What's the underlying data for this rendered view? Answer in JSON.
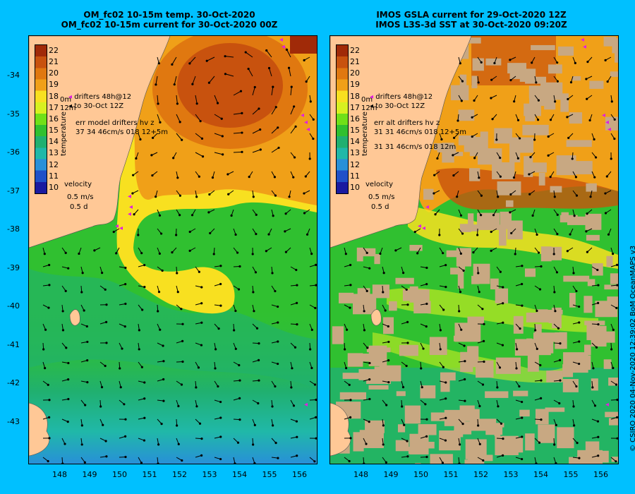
{
  "left_panel": {
    "title_line1": "OM_fc02 10-15m temp. 30-Oct-2020",
    "title_line2": "OM_fc02 10-15m current for 30-Oct-2020 00Z",
    "legend_drifters": "drifters 48h@12",
    "legend_to": "to 30-Oct 12Z",
    "legend_err": "err model drifters hv z",
    "legend_err_values": "37 34 46cm/s 018 12+5m",
    "depth_top": "0m",
    "depth_bottom": "12m"
  },
  "right_panel": {
    "title_line1": "IMOS GSLA current for 29-Oct-2020 12Z",
    "title_line2": "IMOS L3S-3d SST at 30-Oct-2020 09:20Z",
    "legend_drifters": "drifters 48h@12",
    "legend_to": "to 30-Oct 12Z",
    "legend_err": "err alt drifters hv z",
    "legend_err_values": "31 31 46cm/s 018 12+5m",
    "legend_err_values2": "31 31 46cm/s 018 12m",
    "depth_top": "0m",
    "depth_bottom": "12m"
  },
  "colorbar": {
    "title": "temperature",
    "ticks": [
      "22",
      "21",
      "20",
      "19",
      "18",
      "17",
      "16",
      "15",
      "14",
      "13",
      "12",
      "11",
      "10"
    ],
    "colors": [
      "#a02a08",
      "#c8520e",
      "#e07810",
      "#f0a018",
      "#f8e020",
      "#d8f020",
      "#70e018",
      "#30c030",
      "#20b070",
      "#20b8a8",
      "#2890d8",
      "#2050c8",
      "#1a1aa0"
    ]
  },
  "velocity_scale": {
    "label": "velocity",
    "speed": "0.5 m/s",
    "time": "0.5 d"
  },
  "lat_labels": [
    "-34",
    "-35",
    "-36",
    "-37",
    "-38",
    "-39",
    "-40",
    "-41",
    "-42",
    "-43"
  ],
  "lon_labels": [
    "148",
    "149",
    "150",
    "151",
    "152",
    "153",
    "154",
    "155",
    "156"
  ],
  "credit": "© CSIRO 2020   04-Nov-2020 12:39:02 BoM OceanMAPS v3",
  "colors": {
    "background": "#00c0ff",
    "land": "#ffc896",
    "missing_data": "#c8a882",
    "drifter": "#e020e0"
  }
}
